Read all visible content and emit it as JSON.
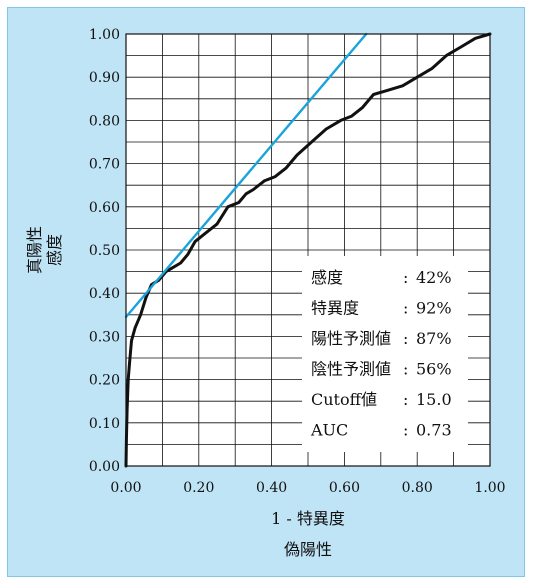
{
  "chart_data": {
    "type": "line",
    "xlabel_lines": [
      "1 - 特異度",
      "偽陽性"
    ],
    "ylabel_lines": [
      "真陽性",
      "感度"
    ],
    "xlim": [
      0,
      1
    ],
    "ylim": [
      0,
      1
    ],
    "x_ticks": [
      "0.00",
      "0.20",
      "0.40",
      "0.60",
      "0.80",
      "1.00"
    ],
    "y_ticks": [
      "0.00",
      "0.10",
      "0.20",
      "0.30",
      "0.40",
      "0.50",
      "0.60",
      "0.70",
      "0.80",
      "0.90",
      "1.00"
    ],
    "grid": true,
    "series": [
      {
        "color": "#111111",
        "points": [
          [
            0.0,
            0.0
          ],
          [
            0.001,
            0.06
          ],
          [
            0.003,
            0.13
          ],
          [
            0.006,
            0.2
          ],
          [
            0.01,
            0.24
          ],
          [
            0.015,
            0.29
          ],
          [
            0.025,
            0.32
          ],
          [
            0.04,
            0.35
          ],
          [
            0.055,
            0.39
          ],
          [
            0.07,
            0.42
          ],
          [
            0.09,
            0.43
          ],
          [
            0.11,
            0.45
          ],
          [
            0.13,
            0.46
          ],
          [
            0.15,
            0.47
          ],
          [
            0.17,
            0.49
          ],
          [
            0.19,
            0.52
          ],
          [
            0.22,
            0.54
          ],
          [
            0.25,
            0.56
          ],
          [
            0.28,
            0.6
          ],
          [
            0.31,
            0.61
          ],
          [
            0.33,
            0.63
          ],
          [
            0.35,
            0.64
          ],
          [
            0.38,
            0.66
          ],
          [
            0.41,
            0.67
          ],
          [
            0.44,
            0.69
          ],
          [
            0.47,
            0.72
          ],
          [
            0.51,
            0.75
          ],
          [
            0.55,
            0.78
          ],
          [
            0.59,
            0.8
          ],
          [
            0.62,
            0.81
          ],
          [
            0.65,
            0.83
          ],
          [
            0.68,
            0.86
          ],
          [
            0.72,
            0.87
          ],
          [
            0.76,
            0.88
          ],
          [
            0.8,
            0.9
          ],
          [
            0.84,
            0.92
          ],
          [
            0.88,
            0.95
          ],
          [
            0.92,
            0.97
          ],
          [
            0.96,
            0.99
          ],
          [
            1.0,
            1.0
          ]
        ]
      },
      {
        "color": "#1ba3dc",
        "points": [
          [
            0.0,
            0.345
          ],
          [
            0.66,
            1.0
          ]
        ]
      }
    ],
    "stats": [
      {
        "label": "感度",
        "sep": ":",
        "value": "42%"
      },
      {
        "label": "特異度",
        "sep": ":",
        "value": "92%"
      },
      {
        "label": "陽性予測値",
        "sep": ":",
        "value": "87%"
      },
      {
        "label": "陰性予測値",
        "sep": ":",
        "value": "56%"
      },
      {
        "label": "Cutoff値",
        "sep": ":",
        "value": "15.0"
      },
      {
        "label": "AUC",
        "sep": ":",
        "value": "0.73"
      }
    ],
    "colors": {
      "background": "#bfe4f6",
      "plot_bg": "#ffffff",
      "grid": "#111111",
      "roc": "#111111",
      "tangent": "#1ba3dc"
    }
  }
}
